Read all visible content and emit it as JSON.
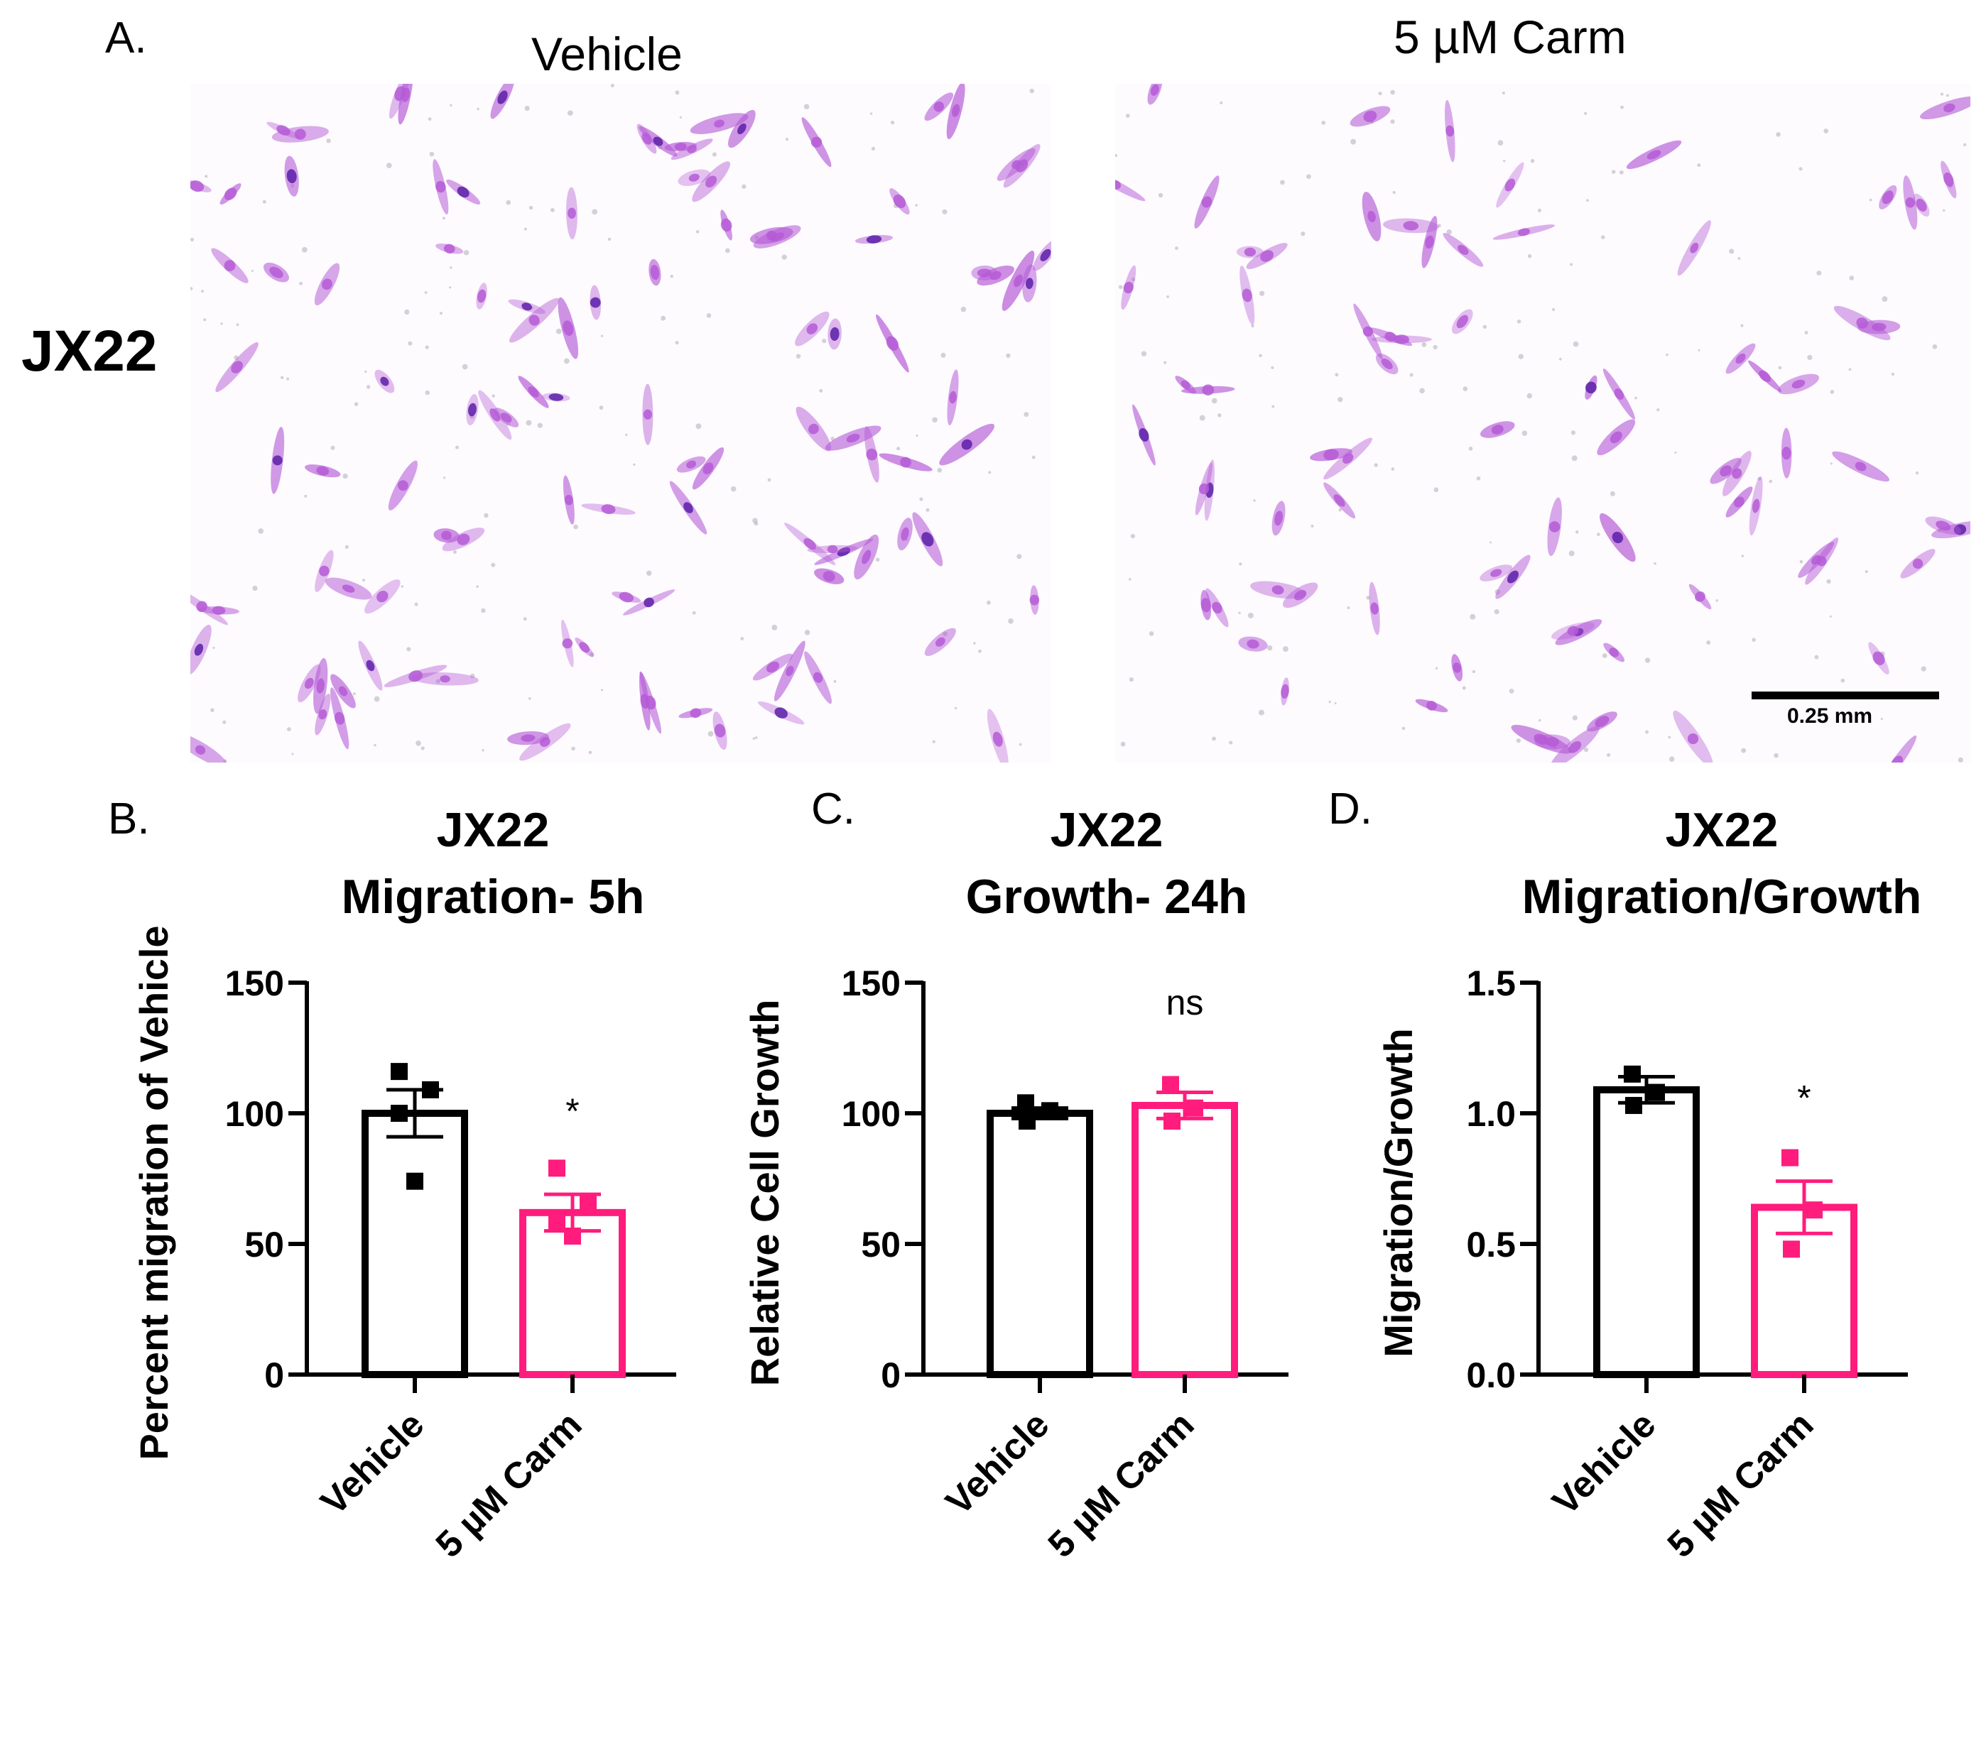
{
  "panel_a": {
    "letter": "A.",
    "row_label": "JX22",
    "images": [
      {
        "title": "Vehicle"
      },
      {
        "title": "5 µM Carm"
      }
    ],
    "scale_bar_label": "0.25 mm",
    "colors": {
      "stain": "#b55bd6",
      "dark_stain": "#5b1fa8"
    }
  },
  "chart_data": [
    {
      "type": "bar",
      "letter": "B.",
      "title_line1": "JX22",
      "title_line2": "Migration- 5h",
      "ylabel": "Percent migration of Vehicle",
      "categories": [
        "Vehicle",
        "5 µM Carm"
      ],
      "values": [
        100,
        62
      ],
      "sem": [
        9,
        7
      ],
      "points": [
        [
          116,
          109,
          100,
          74
        ],
        [
          79,
          66,
          58,
          53
        ]
      ],
      "colors": [
        "#000000",
        "#ff1c7c"
      ],
      "ylim": [
        0,
        150
      ],
      "yticks": [
        0,
        50,
        100,
        150
      ],
      "ytick_labels": [
        "0",
        "50",
        "100",
        "150"
      ],
      "annotations": [
        "",
        "*"
      ]
    },
    {
      "type": "bar",
      "letter": "C.",
      "title_line1": "JX22",
      "title_line2": "Growth- 24h",
      "ylabel": "Relative Cell Growth",
      "categories": [
        "Vehicle",
        "5 µM Carm"
      ],
      "values": [
        100,
        103
      ],
      "sem": [
        2,
        5
      ],
      "points": [
        [
          104,
          101,
          97
        ],
        [
          111,
          102,
          97
        ]
      ],
      "colors": [
        "#000000",
        "#ff1c7c"
      ],
      "ylim": [
        0,
        150
      ],
      "yticks": [
        0,
        50,
        100,
        150
      ],
      "ytick_labels": [
        "0",
        "50",
        "100",
        "150"
      ],
      "annotations": [
        "",
        "ns"
      ]
    },
    {
      "type": "bar",
      "letter": "D.",
      "title_line1": "JX22",
      "title_line2": "Migration/Growth",
      "ylabel": "Migration/Growth",
      "categories": [
        "Vehicle",
        "5 µM Carm"
      ],
      "values": [
        1.09,
        0.64
      ],
      "sem": [
        0.05,
        0.1
      ],
      "points": [
        [
          1.15,
          1.08,
          1.03
        ],
        [
          0.83,
          0.63,
          0.48
        ]
      ],
      "colors": [
        "#000000",
        "#ff1c7c"
      ],
      "ylim": [
        0,
        1.5
      ],
      "yticks": [
        0,
        0.5,
        1.0,
        1.5
      ],
      "ytick_labels": [
        "0.0",
        "0.5",
        "1.0",
        "1.5"
      ],
      "annotations": [
        "",
        "*"
      ]
    }
  ]
}
